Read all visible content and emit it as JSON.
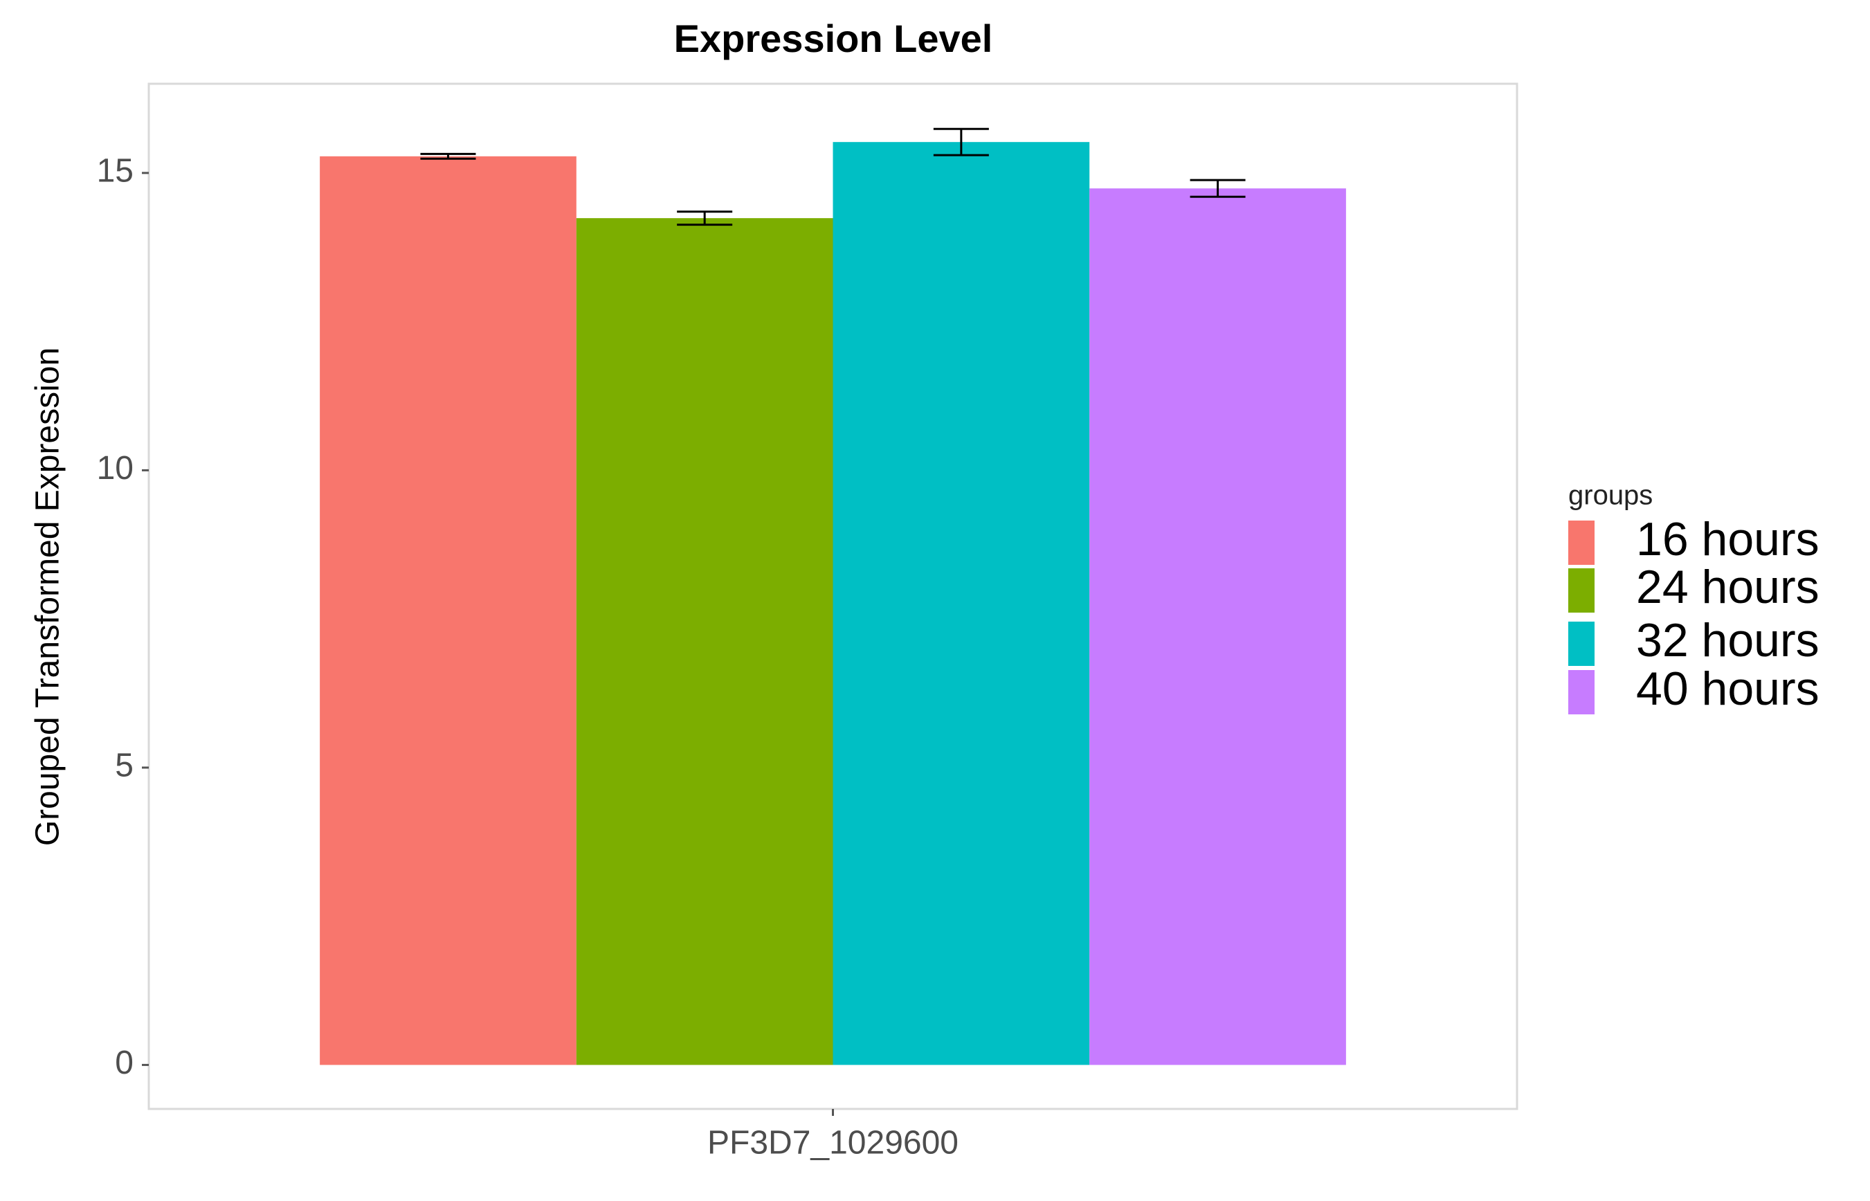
{
  "chart_data": {
    "type": "bar",
    "title": "Expression Level",
    "y_label": "Grouped Transformed Expression",
    "categories": [
      "PF3D7_1029600"
    ],
    "legend_title": "groups",
    "series": [
      {
        "name": "16 hours",
        "color": "#f8766d",
        "values": [
          15.28
        ],
        "errors": [
          0.04
        ]
      },
      {
        "name": "24 hours",
        "color": "#7cae00",
        "values": [
          14.24
        ],
        "errors": [
          0.11
        ]
      },
      {
        "name": "32 hours",
        "color": "#00bfc4",
        "values": [
          15.52
        ],
        "errors": [
          0.22
        ]
      },
      {
        "name": "40 hours",
        "color": "#c77cff",
        "values": [
          14.74
        ],
        "errors": [
          0.14
        ]
      }
    ],
    "ylim": [
      -0.74,
      16.5
    ],
    "yticks": [
      0,
      5,
      10,
      15
    ],
    "grid": false,
    "legend_position": "right"
  }
}
